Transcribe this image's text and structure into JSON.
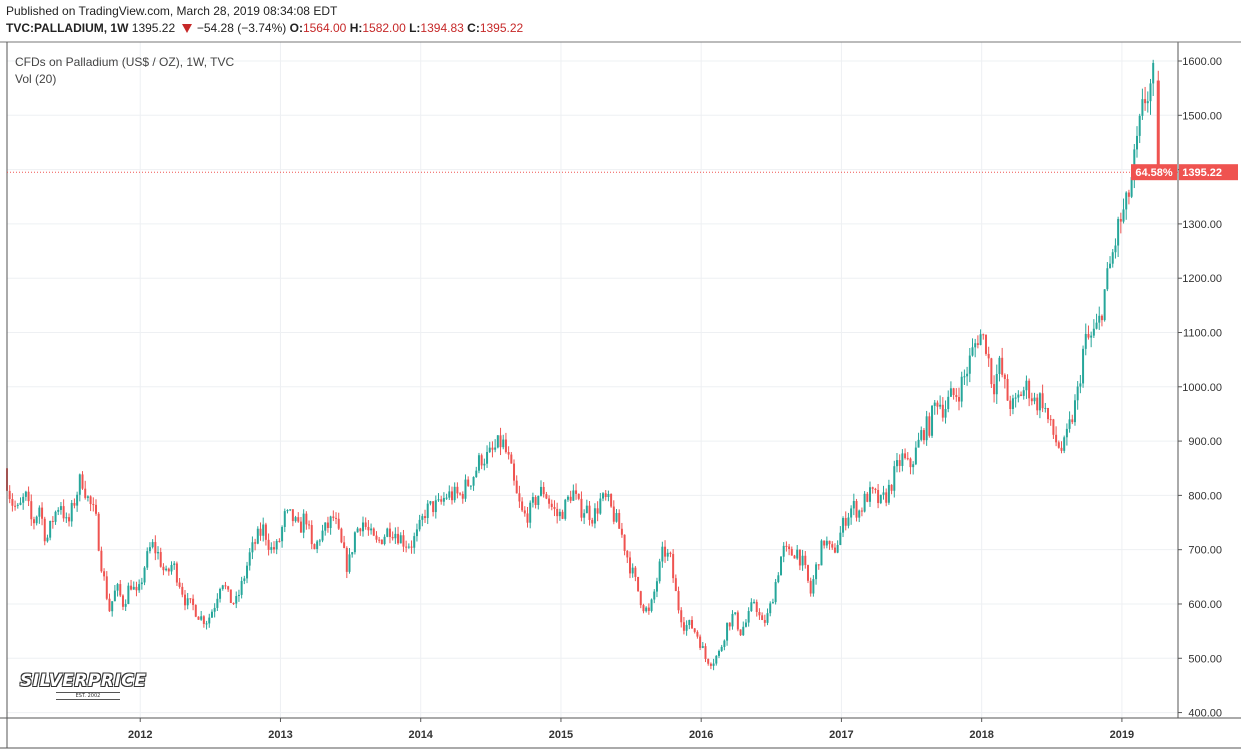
{
  "header": {
    "published": "Published on TradingView.com, March 28, 2019 08:34:08 EDT",
    "symbol": "TVC:PALLADIUM, 1W",
    "price": "1395.22",
    "change": "−54.28 (−3.74%)",
    "open_label": "O:",
    "open": "1564.00",
    "high_label": "H:",
    "high": "1582.00",
    "low_label": "L:",
    "low": "1394.83",
    "close_label": "C:",
    "close": "1395.22"
  },
  "legend": {
    "title": "CFDs on Palladium (US$ / OZ), 1W, TVC",
    "volume": "Vol (20)"
  },
  "logo": {
    "main": "SILVERPRICE",
    "sub": "EST. 2002"
  },
  "colors": {
    "up": "#26a69a",
    "down": "#ef5350",
    "grid": "#eef0f3",
    "price_line": "#ef5350"
  },
  "chart_data": {
    "type": "candlestick",
    "interval": "1W",
    "title": "CFDs on Palladium (US$ / OZ), 1W, TVC",
    "y_ticks": [
      "400.00",
      "500.00",
      "600.00",
      "700.00",
      "800.00",
      "900.00",
      "1000.00",
      "1100.00",
      "1200.00",
      "1300.00",
      "1400.00",
      "1500.00",
      "1600.00"
    ],
    "x_ticks": [
      "2012",
      "2013",
      "2014",
      "2015",
      "2016",
      "2017",
      "2018",
      "2019"
    ],
    "ylim": [
      390,
      1635
    ],
    "xlim": [
      2011.05,
      2019.4
    ],
    "last_price_label": "1395.22",
    "change_label": "64.58%",
    "last_price": 1395.22,
    "grid": true,
    "path": [
      [
        2011.05,
        850
      ],
      [
        2011.1,
        790
      ],
      [
        2011.15,
        770
      ],
      [
        2011.2,
        800
      ],
      [
        2011.25,
        745
      ],
      [
        2011.3,
        780
      ],
      [
        2011.35,
        715
      ],
      [
        2011.4,
        760
      ],
      [
        2011.45,
        790
      ],
      [
        2011.5,
        740
      ],
      [
        2011.55,
        790
      ],
      [
        2011.6,
        835
      ],
      [
        2011.65,
        790
      ],
      [
        2011.7,
        760
      ],
      [
        2011.75,
        660
      ],
      [
        2011.8,
        590
      ],
      [
        2011.85,
        630
      ],
      [
        2011.9,
        600
      ],
      [
        2011.95,
        640
      ],
      [
        2012.0,
        610
      ],
      [
        2012.05,
        670
      ],
      [
        2012.1,
        710
      ],
      [
        2012.15,
        690
      ],
      [
        2012.2,
        650
      ],
      [
        2012.25,
        675
      ],
      [
        2012.3,
        640
      ],
      [
        2012.35,
        600
      ],
      [
        2012.4,
        595
      ],
      [
        2012.45,
        575
      ],
      [
        2012.5,
        570
      ],
      [
        2012.55,
        600
      ],
      [
        2012.6,
        650
      ],
      [
        2012.65,
        610
      ],
      [
        2012.7,
        600
      ],
      [
        2012.75,
        640
      ],
      [
        2012.8,
        690
      ],
      [
        2012.85,
        720
      ],
      [
        2012.9,
        740
      ],
      [
        2012.95,
        700
      ],
      [
        2013.0,
        705
      ],
      [
        2013.05,
        760
      ],
      [
        2013.1,
        760
      ],
      [
        2013.15,
        735
      ],
      [
        2013.2,
        765
      ],
      [
        2013.25,
        690
      ],
      [
        2013.3,
        725
      ],
      [
        2013.35,
        740
      ],
      [
        2013.4,
        760
      ],
      [
        2013.45,
        710
      ],
      [
        2013.5,
        665
      ],
      [
        2013.55,
        730
      ],
      [
        2013.6,
        755
      ],
      [
        2013.65,
        730
      ],
      [
        2013.7,
        710
      ],
      [
        2013.75,
        725
      ],
      [
        2013.8,
        740
      ],
      [
        2013.85,
        730
      ],
      [
        2013.9,
        715
      ],
      [
        2013.95,
        710
      ],
      [
        2014.0,
        730
      ],
      [
        2014.05,
        770
      ],
      [
        2014.1,
        780
      ],
      [
        2014.15,
        780
      ],
      [
        2014.2,
        800
      ],
      [
        2014.3,
        800
      ],
      [
        2014.35,
        820
      ],
      [
        2014.4,
        840
      ],
      [
        2014.45,
        870
      ],
      [
        2014.5,
        870
      ],
      [
        2014.55,
        885
      ],
      [
        2014.6,
        900
      ],
      [
        2014.65,
        860
      ],
      [
        2014.7,
        800
      ],
      [
        2014.75,
        760
      ],
      [
        2014.8,
        770
      ],
      [
        2014.85,
        800
      ],
      [
        2014.9,
        810
      ],
      [
        2014.95,
        780
      ],
      [
        2015.0,
        760
      ],
      [
        2015.05,
        780
      ],
      [
        2015.1,
        810
      ],
      [
        2015.15,
        775
      ],
      [
        2015.2,
        775
      ],
      [
        2015.25,
        760
      ],
      [
        2015.3,
        790
      ],
      [
        2015.35,
        790
      ],
      [
        2015.4,
        760
      ],
      [
        2015.45,
        730
      ],
      [
        2015.5,
        680
      ],
      [
        2015.55,
        640
      ],
      [
        2015.6,
        600
      ],
      [
        2015.65,
        580
      ],
      [
        2015.7,
        640
      ],
      [
        2015.75,
        700
      ],
      [
        2015.8,
        680
      ],
      [
        2015.85,
        600
      ],
      [
        2015.9,
        560
      ],
      [
        2015.95,
        560
      ],
      [
        2016.0,
        540
      ],
      [
        2016.05,
        500
      ],
      [
        2016.1,
        495
      ],
      [
        2016.15,
        510
      ],
      [
        2016.2,
        560
      ],
      [
        2016.25,
        580
      ],
      [
        2016.3,
        550
      ],
      [
        2016.35,
        570
      ],
      [
        2016.4,
        610
      ],
      [
        2016.45,
        560
      ],
      [
        2016.5,
        580
      ],
      [
        2016.55,
        640
      ],
      [
        2016.6,
        700
      ],
      [
        2016.65,
        690
      ],
      [
        2016.7,
        700
      ],
      [
        2016.75,
        670
      ],
      [
        2016.8,
        620
      ],
      [
        2016.85,
        680
      ],
      [
        2016.9,
        720
      ],
      [
        2016.95,
        690
      ],
      [
        2017.0,
        720
      ],
      [
        2017.05,
        760
      ],
      [
        2017.1,
        780
      ],
      [
        2017.15,
        770
      ],
      [
        2017.2,
        800
      ],
      [
        2017.25,
        800
      ],
      [
        2017.3,
        785
      ],
      [
        2017.35,
        805
      ],
      [
        2017.4,
        840
      ],
      [
        2017.45,
        870
      ],
      [
        2017.5,
        850
      ],
      [
        2017.55,
        880
      ],
      [
        2017.6,
        920
      ],
      [
        2017.65,
        930
      ],
      [
        2017.7,
        980
      ],
      [
        2017.75,
        960
      ],
      [
        2017.8,
        980
      ],
      [
        2017.85,
        990
      ],
      [
        2017.9,
        1020
      ],
      [
        2017.95,
        1060
      ],
      [
        2018.0,
        1100
      ],
      [
        2018.05,
        1080
      ],
      [
        2018.1,
        1000
      ],
      [
        2018.15,
        1040
      ],
      [
        2018.2,
        980
      ],
      [
        2018.25,
        960
      ],
      [
        2018.3,
        990
      ],
      [
        2018.35,
        1000
      ],
      [
        2018.4,
        970
      ],
      [
        2018.45,
        980
      ],
      [
        2018.5,
        930
      ],
      [
        2018.55,
        900
      ],
      [
        2018.6,
        880
      ],
      [
        2018.65,
        930
      ],
      [
        2018.7,
        980
      ],
      [
        2018.75,
        1080
      ],
      [
        2018.8,
        1090
      ],
      [
        2018.85,
        1110
      ],
      [
        2018.9,
        1180
      ],
      [
        2018.95,
        1240
      ],
      [
        2019.0,
        1300
      ],
      [
        2019.05,
        1330
      ],
      [
        2019.1,
        1400
      ],
      [
        2019.15,
        1480
      ],
      [
        2019.18,
        1530
      ],
      [
        2019.22,
        1550
      ],
      [
        2019.24,
        1564
      ]
    ],
    "final_candle": {
      "open": 1564.0,
      "high": 1582.0,
      "low": 1394.83,
      "close": 1395.22
    }
  }
}
